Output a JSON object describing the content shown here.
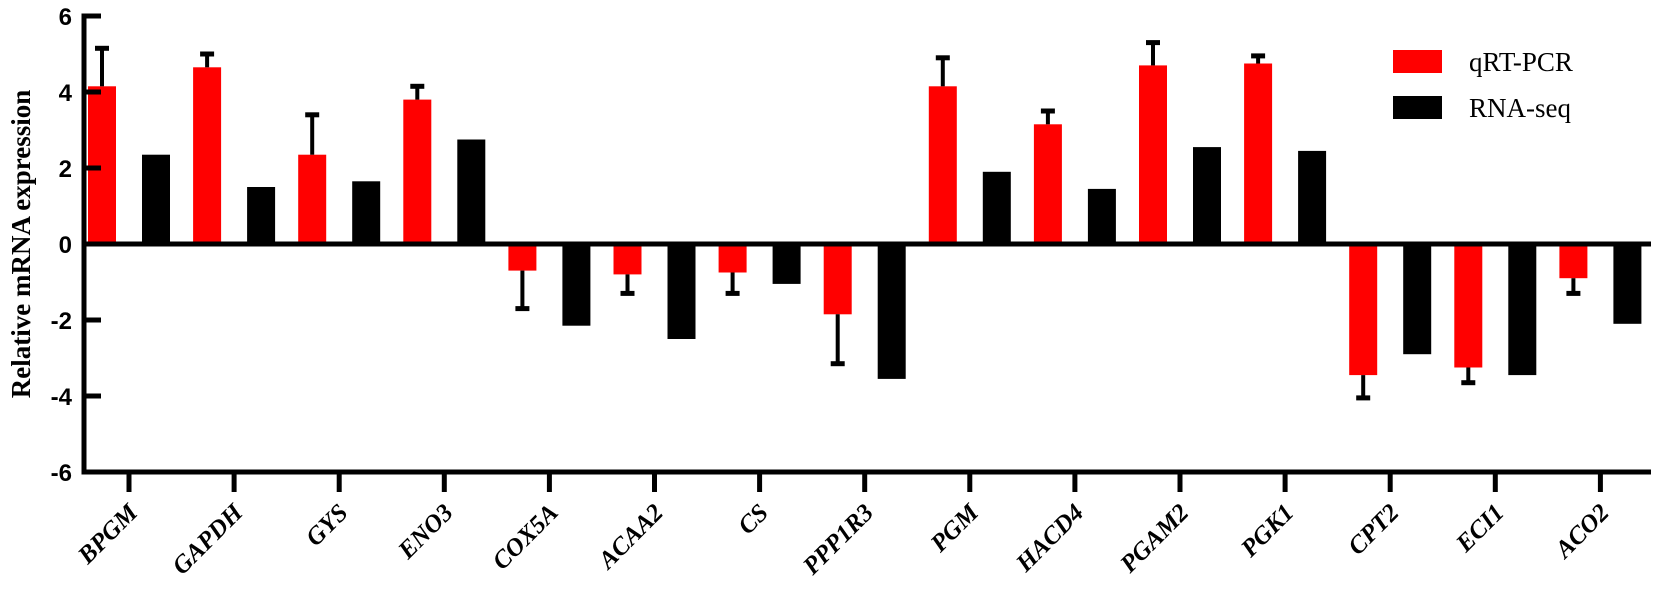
{
  "chart_data": {
    "type": "bar",
    "title": "",
    "xlabel": "",
    "ylabel": "Relative mRNA expression",
    "ylim": [
      -6,
      6
    ],
    "yticks": [
      6,
      4,
      2,
      0,
      -2,
      -4,
      -6
    ],
    "grid": false,
    "legend_position": "top-right",
    "categories": [
      "BPGM",
      "GAPDH",
      "GYS",
      "ENO3",
      "COX5A",
      "ACAA2",
      "CS",
      "PPP1R3",
      "PGM",
      "HACD4",
      "PGAM2",
      "PGK1",
      "CPT2",
      "ECI1",
      "ACO2"
    ],
    "series": [
      {
        "name": "qRT-PCR",
        "color": "#ff0000",
        "values": [
          4.15,
          4.65,
          2.35,
          3.8,
          -0.7,
          -0.8,
          -0.75,
          -1.85,
          4.15,
          3.15,
          4.7,
          4.75,
          -3.45,
          -3.25,
          -0.9
        ],
        "error": [
          1.0,
          0.35,
          1.05,
          0.35,
          1.0,
          0.5,
          0.55,
          1.3,
          0.75,
          0.35,
          0.6,
          0.2,
          0.6,
          0.4,
          0.4
        ]
      },
      {
        "name": "RNA-seq",
        "color": "#000000",
        "values": [
          2.35,
          1.5,
          1.65,
          2.75,
          -2.15,
          -2.5,
          -1.05,
          -3.55,
          1.9,
          1.45,
          2.55,
          2.45,
          -2.9,
          -3.45,
          -2.1
        ]
      }
    ]
  },
  "legend": {
    "items": [
      {
        "label": "qRT-PCR",
        "color": "#ff0000"
      },
      {
        "label": "RNA-seq",
        "color": "#000000"
      }
    ]
  }
}
